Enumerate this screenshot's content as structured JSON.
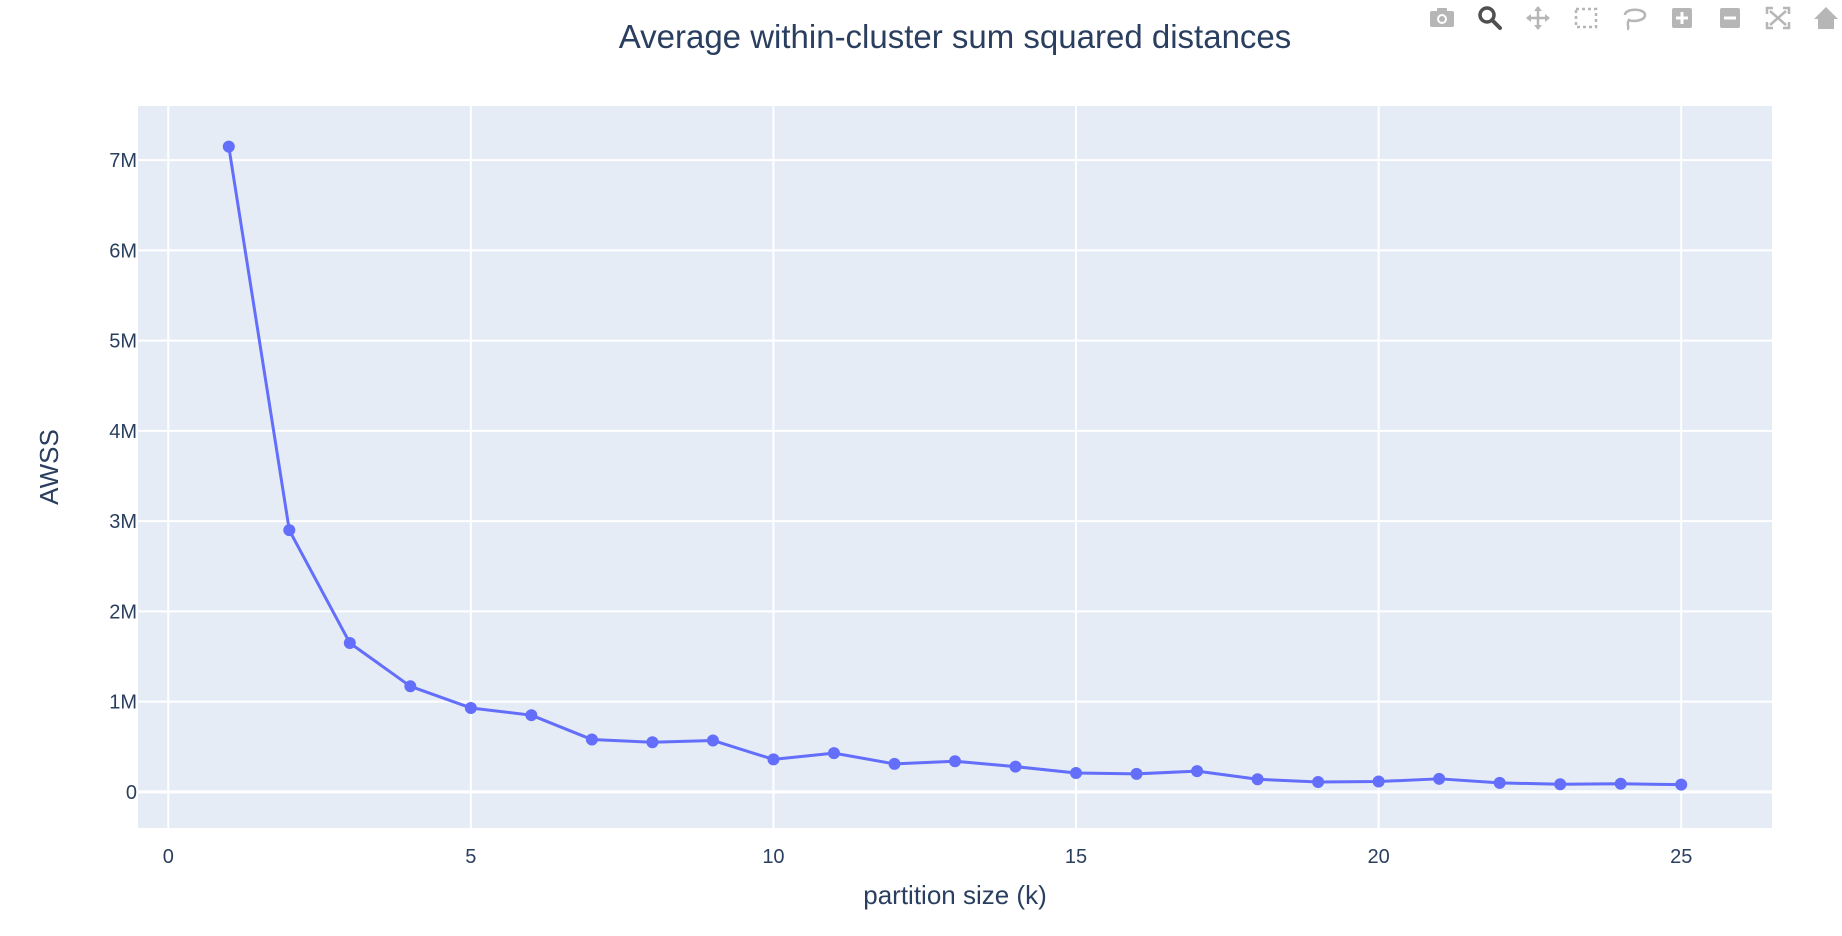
{
  "chart_data": {
    "type": "line",
    "title": "Average within-cluster sum squared distances",
    "xlabel": "partition size (k)",
    "ylabel": "AWSS",
    "xlim": [
      -0.5,
      26.5
    ],
    "ylim": [
      -400000,
      7600000
    ],
    "x_ticks": [
      0,
      5,
      10,
      15,
      20,
      25
    ],
    "x_tick_labels": [
      "0",
      "5",
      "10",
      "15",
      "20",
      "25"
    ],
    "y_ticks": [
      0,
      1000000,
      2000000,
      3000000,
      4000000,
      5000000,
      6000000,
      7000000
    ],
    "y_tick_labels": [
      "0",
      "1M",
      "2M",
      "3M",
      "4M",
      "5M",
      "6M",
      "7M"
    ],
    "grid": true,
    "series": [
      {
        "name": "AWSS",
        "color": "#636efa",
        "mode": "lines+markers",
        "x": [
          1,
          2,
          3,
          4,
          5,
          6,
          7,
          8,
          9,
          10,
          11,
          12,
          13,
          14,
          15,
          16,
          17,
          18,
          19,
          20,
          21,
          22,
          23,
          24,
          25
        ],
        "values": [
          7150000,
          2900000,
          1650000,
          1170000,
          930000,
          850000,
          580000,
          550000,
          570000,
          360000,
          430000,
          310000,
          340000,
          280000,
          210000,
          200000,
          230000,
          140000,
          110000,
          115000,
          145000,
          100000,
          85000,
          90000,
          80000
        ]
      }
    ],
    "plot_bg": "#e5ecf6",
    "grid_color": "#ffffff",
    "text_color": "#2a3f5f"
  },
  "modebar": {
    "icons": [
      "camera-icon",
      "zoom-icon",
      "pan-icon",
      "box-select-icon",
      "lasso-select-icon",
      "zoom-in-icon",
      "zoom-out-icon",
      "autoscale-icon",
      "reset-axes-icon"
    ],
    "icon_color": "#b6b6b6",
    "active_color": "#505050"
  }
}
